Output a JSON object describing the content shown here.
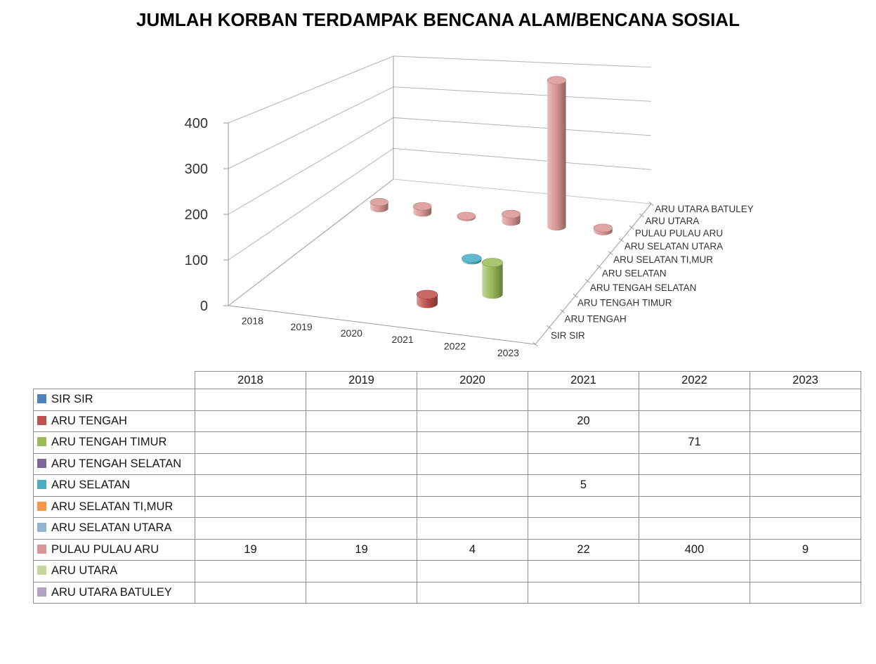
{
  "title": "JUMLAH KORBAN TERDAMPAK BENCANA ALAM/BENCANA SOSIAL",
  "chart_data": {
    "type": "bar",
    "variant": "3d-cylinder",
    "title": "JUMLAH KORBAN TERDAMPAK BENCANA ALAM/BENCANA SOSIAL",
    "categories": [
      "2018",
      "2019",
      "2020",
      "2021",
      "2022",
      "2023"
    ],
    "series": [
      {
        "name": "SIR SIR",
        "color": "#4F81BD",
        "values": [
          null,
          null,
          null,
          null,
          null,
          null
        ]
      },
      {
        "name": "ARU TENGAH",
        "color": "#C0504D",
        "values": [
          null,
          null,
          null,
          20,
          null,
          null
        ]
      },
      {
        "name": "ARU TENGAH TIMUR",
        "color": "#9BBB59",
        "values": [
          null,
          null,
          null,
          null,
          71,
          null
        ]
      },
      {
        "name": "ARU TENGAH SELATAN",
        "color": "#8064A2",
        "values": [
          null,
          null,
          null,
          null,
          null,
          null
        ]
      },
      {
        "name": "ARU SELATAN",
        "color": "#4BACC6",
        "values": [
          null,
          null,
          null,
          5,
          null,
          null
        ]
      },
      {
        "name": "ARU SELATAN TI,MUR",
        "color": "#F79646",
        "values": [
          null,
          null,
          null,
          null,
          null,
          null
        ]
      },
      {
        "name": "ARU SELATAN UTARA",
        "color": "#95B3D7",
        "values": [
          null,
          null,
          null,
          null,
          null,
          null
        ]
      },
      {
        "name": "PULAU PULAU ARU",
        "color": "#D99694",
        "values": [
          19,
          19,
          4,
          22,
          400,
          9
        ]
      },
      {
        "name": "ARU UTARA",
        "color": "#C3D69B",
        "values": [
          null,
          null,
          null,
          null,
          null,
          null
        ]
      },
      {
        "name": "ARU UTARA BATULEY",
        "color": "#B3A2C7",
        "values": [
          null,
          null,
          null,
          null,
          null,
          null
        ]
      }
    ],
    "value_axis": {
      "min": 0,
      "max": 400,
      "ticks": [
        0,
        100,
        200,
        300,
        400
      ]
    },
    "grid": true,
    "legend_position": "data-table-keys"
  }
}
